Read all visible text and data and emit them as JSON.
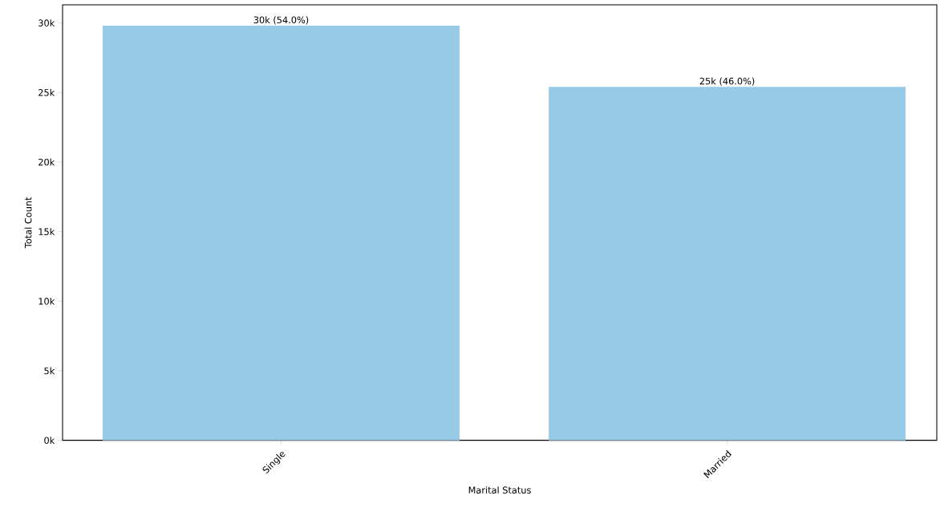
{
  "chart_data": {
    "type": "bar",
    "xlabel": "Marital Status",
    "ylabel": "Total Count",
    "categories": [
      "Single",
      "Married"
    ],
    "values": [
      29800,
      25400
    ],
    "value_labels": [
      "30k (54.0%)",
      "25k (46.0%)"
    ],
    "color": "#97cae6",
    "ylim": [
      0,
      31300
    ],
    "yticks": [
      {
        "value": 0,
        "label": "0k"
      },
      {
        "value": 5000,
        "label": "5k"
      },
      {
        "value": 10000,
        "label": "10k"
      },
      {
        "value": 15000,
        "label": "15k"
      },
      {
        "value": 20000,
        "label": "20k"
      },
      {
        "value": 25000,
        "label": "25k"
      },
      {
        "value": 30000,
        "label": "30k"
      }
    ],
    "grid": false
  }
}
